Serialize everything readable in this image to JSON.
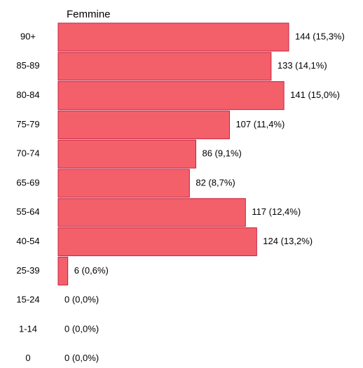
{
  "chart_data": {
    "type": "bar",
    "orientation": "horizontal",
    "title": "Femmine",
    "categories": [
      "90+",
      "85-89",
      "80-84",
      "75-79",
      "70-74",
      "65-69",
      "55-64",
      "40-54",
      "25-39",
      "15-24",
      "1-14",
      "0"
    ],
    "values": [
      144,
      133,
      141,
      107,
      86,
      82,
      117,
      124,
      6,
      0,
      0,
      0
    ],
    "value_labels": [
      "144 (15,3%)",
      "133 (14,1%)",
      "141 (15,0%)",
      "107 (11,4%)",
      "86 (9,1%)",
      "82 (8,7%)",
      "117 (12,4%)",
      "124 (13,2%)",
      "6 (0,6%)",
      "0 (0,0%)",
      "0 (0,0%)",
      "0 (0,0%)"
    ],
    "color": "#f4606a"
  }
}
